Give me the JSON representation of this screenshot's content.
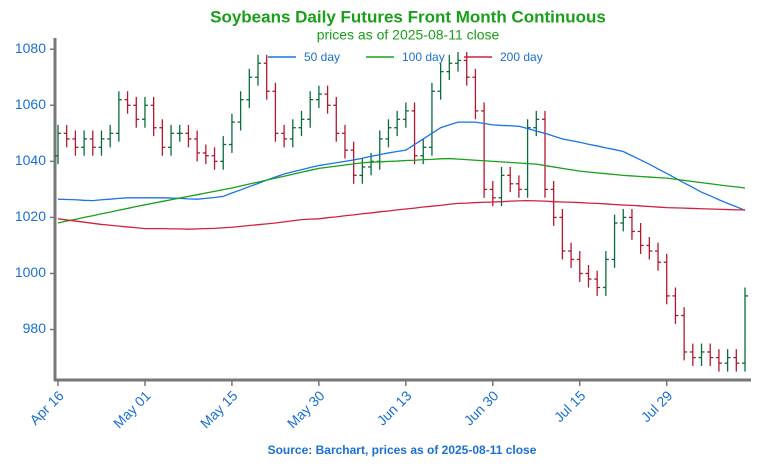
{
  "chart_data": {
    "type": "ohlc",
    "title": "Soybeans Daily Futures Front Month Continuous",
    "subtitle": "prices as of 2025-08-11 close",
    "source": "Source: Barchart, prices as of 2025-08-11 close",
    "categories": [
      "Apr 16",
      null,
      null,
      null,
      null,
      null,
      null,
      null,
      null,
      null,
      "May 01",
      null,
      null,
      null,
      null,
      null,
      null,
      null,
      null,
      null,
      "May 15",
      null,
      null,
      null,
      null,
      null,
      null,
      null,
      null,
      null,
      "May 30",
      null,
      null,
      null,
      null,
      null,
      null,
      null,
      null,
      null,
      "Jun 13",
      null,
      null,
      null,
      null,
      null,
      null,
      null,
      null,
      null,
      "Jun 30",
      null,
      null,
      null,
      null,
      null,
      null,
      null,
      null,
      null,
      "Jul 15",
      null,
      null,
      null,
      null,
      null,
      null,
      null,
      null,
      null,
      "Jul 29",
      null,
      null,
      null,
      null,
      null,
      null,
      null,
      null,
      null
    ],
    "ohlc": {
      "up_color": "#0b6b3c",
      "down_color": "#b3182d",
      "open": [
        1042,
        1050,
        1048,
        1045,
        1048,
        1045,
        1048,
        1050,
        1062,
        1060,
        1055,
        1060,
        1052,
        1045,
        1050,
        1050,
        1048,
        1043,
        1042,
        1040,
        1046,
        1054,
        1062,
        1070,
        1075,
        1065,
        1050,
        1048,
        1052,
        1055,
        1062,
        1064,
        1060,
        1050,
        1044,
        1035,
        1038,
        1040,
        1048,
        1052,
        1055,
        1058,
        1042,
        1045,
        1065,
        1072,
        1075,
        1076,
        1070,
        1058,
        1030,
        1027,
        1035,
        1032,
        1030,
        1052,
        1055,
        1030,
        1020,
        1008,
        1005,
        1000,
        998,
        995,
        1005,
        1018,
        1020,
        1015,
        1010,
        1008,
        1004,
        992,
        985,
        972,
        970,
        972,
        970,
        968,
        970,
        968
      ],
      "high": [
        1053,
        1053,
        1051,
        1051,
        1051,
        1051,
        1053,
        1065,
        1065,
        1063,
        1063,
        1063,
        1055,
        1053,
        1053,
        1053,
        1051,
        1046,
        1045,
        1049,
        1057,
        1065,
        1073,
        1078,
        1078,
        1068,
        1053,
        1055,
        1058,
        1065,
        1067,
        1067,
        1063,
        1053,
        1047,
        1041,
        1043,
        1051,
        1055,
        1058,
        1061,
        1061,
        1048,
        1068,
        1075,
        1078,
        1079,
        1079,
        1073,
        1061,
        1033,
        1038,
        1038,
        1035,
        1055,
        1058,
        1058,
        1033,
        1023,
        1011,
        1008,
        1003,
        1001,
        1008,
        1021,
        1023,
        1023,
        1018,
        1013,
        1011,
        1007,
        995,
        988,
        975,
        975,
        975,
        973,
        973,
        973,
        995
      ],
      "low": [
        1039,
        1045,
        1042,
        1042,
        1042,
        1042,
        1045,
        1047,
        1057,
        1052,
        1052,
        1049,
        1042,
        1042,
        1047,
        1045,
        1040,
        1039,
        1037,
        1037,
        1043,
        1051,
        1059,
        1067,
        1062,
        1047,
        1045,
        1045,
        1049,
        1052,
        1059,
        1057,
        1047,
        1041,
        1032,
        1032,
        1035,
        1037,
        1045,
        1049,
        1052,
        1039,
        1039,
        1042,
        1062,
        1069,
        1072,
        1067,
        1055,
        1027,
        1024,
        1024,
        1029,
        1027,
        1027,
        1049,
        1027,
        1017,
        1005,
        1002,
        997,
        995,
        992,
        992,
        1002,
        1015,
        1012,
        1007,
        1005,
        1001,
        989,
        982,
        969,
        967,
        967,
        967,
        965,
        965,
        965,
        965
      ],
      "close": [
        1050,
        1048,
        1045,
        1048,
        1045,
        1048,
        1050,
        1062,
        1060,
        1055,
        1060,
        1052,
        1045,
        1050,
        1050,
        1048,
        1043,
        1042,
        1040,
        1046,
        1054,
        1062,
        1070,
        1075,
        1065,
        1050,
        1048,
        1052,
        1055,
        1062,
        1064,
        1060,
        1050,
        1044,
        1035,
        1038,
        1040,
        1048,
        1052,
        1055,
        1058,
        1042,
        1045,
        1065,
        1072,
        1075,
        1076,
        1070,
        1058,
        1030,
        1027,
        1035,
        1032,
        1030,
        1052,
        1055,
        1030,
        1020,
        1008,
        1005,
        1000,
        998,
        995,
        1005,
        1018,
        1020,
        1015,
        1010,
        1008,
        1004,
        992,
        985,
        972,
        970,
        972,
        970,
        968,
        970,
        968,
        992
      ]
    },
    "series": [
      {
        "name": "50 day",
        "color": "#1a73e8",
        "values": [
          1026.5,
          1026.4,
          1026.3,
          1026.1,
          1026,
          1026.3,
          1026.5,
          1026.8,
          1027,
          1027,
          1027,
          1027,
          1027,
          1026.9,
          1026.8,
          1026.6,
          1026.5,
          1026.8,
          1027.1,
          1027.5,
          1028.7,
          1029.8,
          1031,
          1032.1,
          1033.3,
          1034.4,
          1035.5,
          1036.3,
          1037,
          1037.8,
          1038.5,
          1039,
          1039.5,
          1040,
          1040.5,
          1041.1,
          1041.8,
          1042.4,
          1043,
          1043.5,
          1044,
          1046,
          1048,
          1050,
          1052,
          1053,
          1054,
          1054,
          1054,
          1053.5,
          1053,
          1052.8,
          1052.7,
          1052.5,
          1051.7,
          1050.8,
          1050,
          1049,
          1048,
          1047.4,
          1046.8,
          1046.1,
          1045.5,
          1044.8,
          1044.2,
          1043.5,
          1042,
          1040.5,
          1039,
          1037.3,
          1035.7,
          1034,
          1032.3,
          1030.7,
          1029,
          1027.7,
          1026.3,
          1025,
          1023.8,
          1022.5
        ]
      },
      {
        "name": "100 day",
        "color": "#18a018",
        "values": [
          1018,
          1018.7,
          1019.3,
          1020,
          1020.6,
          1021.3,
          1021.9,
          1022.6,
          1023.2,
          1023.9,
          1024.5,
          1025.1,
          1025.7,
          1026.3,
          1026.9,
          1027.5,
          1028.1,
          1028.7,
          1029.3,
          1029.9,
          1030.5,
          1031.2,
          1031.9,
          1032.6,
          1033.3,
          1034,
          1034.7,
          1035.4,
          1036.1,
          1036.8,
          1037.5,
          1037.9,
          1038.3,
          1038.7,
          1039.1,
          1039.5,
          1039.7,
          1039.8,
          1040,
          1040.1,
          1040.3,
          1040.4,
          1040.6,
          1040.7,
          1040.9,
          1041,
          1040.8,
          1040.6,
          1040.4,
          1040.2,
          1040,
          1039.8,
          1039.6,
          1039.4,
          1039.2,
          1039,
          1038.5,
          1038,
          1037.5,
          1037,
          1036.5,
          1036.2,
          1035.9,
          1035.6,
          1035.3,
          1035,
          1034.8,
          1034.6,
          1034.4,
          1034.2,
          1034,
          1033.6,
          1033.2,
          1032.8,
          1032.4,
          1032,
          1031.6,
          1031.2,
          1030.9,
          1030.5
        ]
      },
      {
        "name": "200 day",
        "color": "#d0213f",
        "values": [
          1019.5,
          1019.1,
          1018.7,
          1018.3,
          1017.9,
          1017.5,
          1017.2,
          1016.9,
          1016.6,
          1016.3,
          1016,
          1016,
          1016,
          1015.9,
          1015.9,
          1015.8,
          1015.9,
          1016,
          1016.1,
          1016.3,
          1016.5,
          1016.8,
          1017.1,
          1017.4,
          1017.7,
          1018,
          1018.4,
          1018.8,
          1019.2,
          1019.4,
          1019.5,
          1019.9,
          1020.2,
          1020.6,
          1020.9,
          1021.3,
          1021.6,
          1022,
          1022.3,
          1022.7,
          1023,
          1023.3,
          1023.7,
          1024,
          1024.3,
          1024.7,
          1025,
          1025.1,
          1025.3,
          1025.4,
          1025.5,
          1025.6,
          1025.8,
          1025.9,
          1026,
          1025.9,
          1025.8,
          1025.6,
          1025.5,
          1025.4,
          1025.3,
          1025.1,
          1025,
          1024.8,
          1024.6,
          1024.4,
          1024.3,
          1024.1,
          1023.9,
          1023.7,
          1023.5,
          1023.4,
          1023.3,
          1023.2,
          1023.1,
          1023,
          1022.9,
          1022.8,
          1022.7,
          1022.7
        ]
      }
    ],
    "ylim": [
      962,
      1084
    ],
    "yticks": [
      980,
      1000,
      1020,
      1040,
      1060,
      1080
    ],
    "grid": false
  }
}
